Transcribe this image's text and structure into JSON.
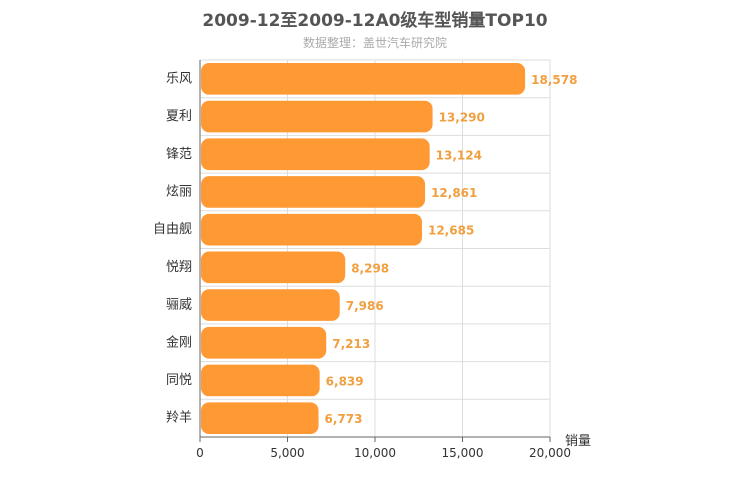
{
  "chart_data": {
    "type": "bar",
    "orientation": "horizontal",
    "title": "2009-12至2009-12A0级车型销量TOP10",
    "subtitle": "数据整理：盖世汽车研究院",
    "xlabel": "销量",
    "ylabel": "",
    "categories": [
      "乐风",
      "夏利",
      "锋范",
      "炫丽",
      "自由舰",
      "悦翔",
      "骊威",
      "金刚",
      "同悦",
      "羚羊"
    ],
    "values": [
      18578,
      13290,
      13124,
      12861,
      12685,
      8298,
      7986,
      7213,
      6839,
      6773
    ],
    "value_labels": [
      "18,578",
      "13,290",
      "13,124",
      "12,861",
      "12,685",
      "8,298",
      "7,986",
      "7,213",
      "6,839",
      "6,773"
    ],
    "xlim": [
      0,
      20000
    ],
    "xticks": [
      "0",
      "5,000",
      "10,000",
      "15,000",
      "20,000"
    ],
    "grid": true,
    "bar_color": "#ff9933",
    "label_color": "#f0a040"
  }
}
